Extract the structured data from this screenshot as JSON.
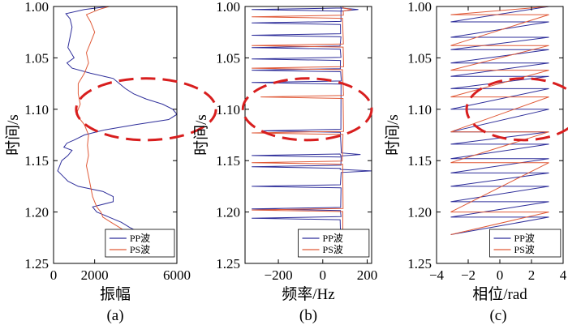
{
  "chart_data": [
    {
      "type": "line",
      "caption": "(a)",
      "xlabel": "振幅",
      "ylabel": "时间/s",
      "xlim": [
        0,
        6000
      ],
      "ylim": [
        1.0,
        1.25
      ],
      "xticks": [
        "0",
        "2000",
        "6000"
      ],
      "xtick_values": [
        0,
        2000,
        6000
      ],
      "yticks": [
        "1.00",
        "1.05",
        "1.10",
        "1.15",
        "1.20",
        "1.25"
      ],
      "ytick_values": [
        1.0,
        1.05,
        1.1,
        1.15,
        1.2,
        1.25
      ],
      "legend": [
        "PP波",
        "PS波"
      ],
      "ellipse": {
        "center": [
          4500,
          1.1
        ],
        "semi_axes": [
          3400,
          0.03
        ]
      },
      "series": [
        {
          "name": "PP波",
          "color": "#2e2e9a",
          "t": [
            1.0,
            1.003,
            1.007,
            1.012,
            1.02,
            1.03,
            1.04,
            1.05,
            1.055,
            1.06,
            1.065,
            1.07,
            1.075,
            1.08,
            1.085,
            1.09,
            1.095,
            1.1,
            1.105,
            1.11,
            1.115,
            1.12,
            1.125,
            1.13,
            1.133,
            1.137,
            1.14,
            1.145,
            1.15,
            1.155,
            1.16,
            1.165,
            1.17,
            1.175,
            1.18,
            1.185,
            1.19,
            1.195,
            1.2,
            1.205,
            1.21,
            1.215,
            1.22
          ],
          "values": [
            2700,
            1500,
            600,
            800,
            900,
            800,
            700,
            1000,
            650,
            900,
            1800,
            2900,
            3200,
            3500,
            3900,
            4500,
            5300,
            5800,
            6000,
            5600,
            4000,
            2500,
            1500,
            1000,
            650,
            500,
            900,
            700,
            400,
            300,
            200,
            450,
            700,
            1200,
            2400,
            2900,
            2900,
            1900,
            2100,
            2700,
            3300,
            3700,
            4200
          ]
        },
        {
          "name": "PS波",
          "color": "#e05a38",
          "t": [
            1.0,
            1.003,
            1.008,
            1.015,
            1.025,
            1.035,
            1.045,
            1.055,
            1.065,
            1.075,
            1.085,
            1.095,
            1.105,
            1.115,
            1.125,
            1.135,
            1.145,
            1.155,
            1.165,
            1.175,
            1.185,
            1.195,
            1.2,
            1.205,
            1.21,
            1.215,
            1.22
          ],
          "values": [
            2700,
            2200,
            1600,
            1800,
            2000,
            1800,
            1600,
            1700,
            1500,
            1200,
            1200,
            1300,
            1100,
            1500,
            1700,
            1650,
            1700,
            1600,
            1700,
            1800,
            1900,
            2100,
            2300,
            2400,
            2800,
            3200,
            3600
          ]
        }
      ]
    },
    {
      "type": "line",
      "caption": "(b)",
      "xlabel": "频率/Hz",
      "ylabel": "时间/s",
      "xlim": [
        -350,
        220
      ],
      "ylim": [
        1.0,
        1.25
      ],
      "xticks": [
        "−200",
        "0",
        "200"
      ],
      "xtick_values": [
        -200,
        0,
        200
      ],
      "yticks": [
        "1.00",
        "1.05",
        "1.10",
        "1.15",
        "1.20",
        "1.25"
      ],
      "ytick_values": [
        1.0,
        1.05,
        1.1,
        1.15,
        1.2,
        1.25
      ],
      "legend": [
        "PP波",
        "PS波"
      ],
      "ellipse": {
        "center": [
          -70,
          1.1
        ],
        "semi_axes": [
          290,
          0.03
        ]
      },
      "series": [
        {
          "name": "PP波",
          "color": "#2e2e9a",
          "spikes_t": [
            1.003,
            1.016,
            1.028,
            1.04,
            1.051,
            1.062,
            1.074,
            1.121,
            1.145,
            1.156,
            1.175,
            1.197,
            1.206
          ],
          "spike_depth": [
            -320,
            -320,
            -320,
            -320,
            -320,
            -320,
            -320,
            -270,
            -320,
            -320,
            -320,
            -320,
            -320
          ],
          "baseline": 80,
          "right_spikes": [
            {
              "t": 1.003,
              "x": 160
            },
            {
              "t": 1.16,
              "x": 220
            },
            {
              "t": 1.144,
              "x": 170
            }
          ]
        },
        {
          "name": "PS波",
          "color": "#e05a38",
          "spikes_t": [
            1.01,
            1.038,
            1.06,
            1.088,
            1.123,
            1.152,
            1.198
          ],
          "spike_depth": [
            -320,
            -320,
            -320,
            -280,
            -320,
            -320,
            -320
          ],
          "baseline": 90,
          "right_spikes": [
            {
              "t": 1.003,
              "x": 130
            }
          ]
        }
      ]
    },
    {
      "type": "line",
      "caption": "(c)",
      "xlabel": "相位/rad",
      "ylabel": "时间/s",
      "xlim": [
        -4,
        4
      ],
      "ylim": [
        1.0,
        1.25
      ],
      "xticks": [
        "−4",
        "−2",
        "0",
        "2",
        "4"
      ],
      "xtick_values": [
        -4,
        -2,
        0,
        2,
        4
      ],
      "yticks": [
        "1.00",
        "1.05",
        "1.10",
        "1.15",
        "1.20",
        "1.25"
      ],
      "ytick_values": [
        1.0,
        1.05,
        1.1,
        1.15,
        1.2,
        1.25
      ],
      "legend": [
        "PP波",
        "PS波"
      ],
      "ellipse": {
        "center": [
          1.5,
          1.1
        ],
        "semi_axes": [
          3.6,
          0.03
        ]
      },
      "series": [
        {
          "name": "PP波",
          "color": "#2e2e9a",
          "wrap_t": [
            1.0,
            1.015,
            1.03,
            1.042,
            1.055,
            1.068,
            1.08,
            1.1,
            1.122,
            1.134,
            1.148,
            1.162,
            1.175,
            1.19,
            1.205,
            1.222
          ],
          "wrap_min": -3.1,
          "wrap_max": 3.1
        },
        {
          "name": "PS波",
          "color": "#e05a38",
          "wrap_t": [
            1.0,
            1.008,
            1.038,
            1.062,
            1.088,
            1.122,
            1.152,
            1.2,
            1.222
          ],
          "wrap_min": -3.1,
          "wrap_max": 3.1
        }
      ]
    }
  ]
}
